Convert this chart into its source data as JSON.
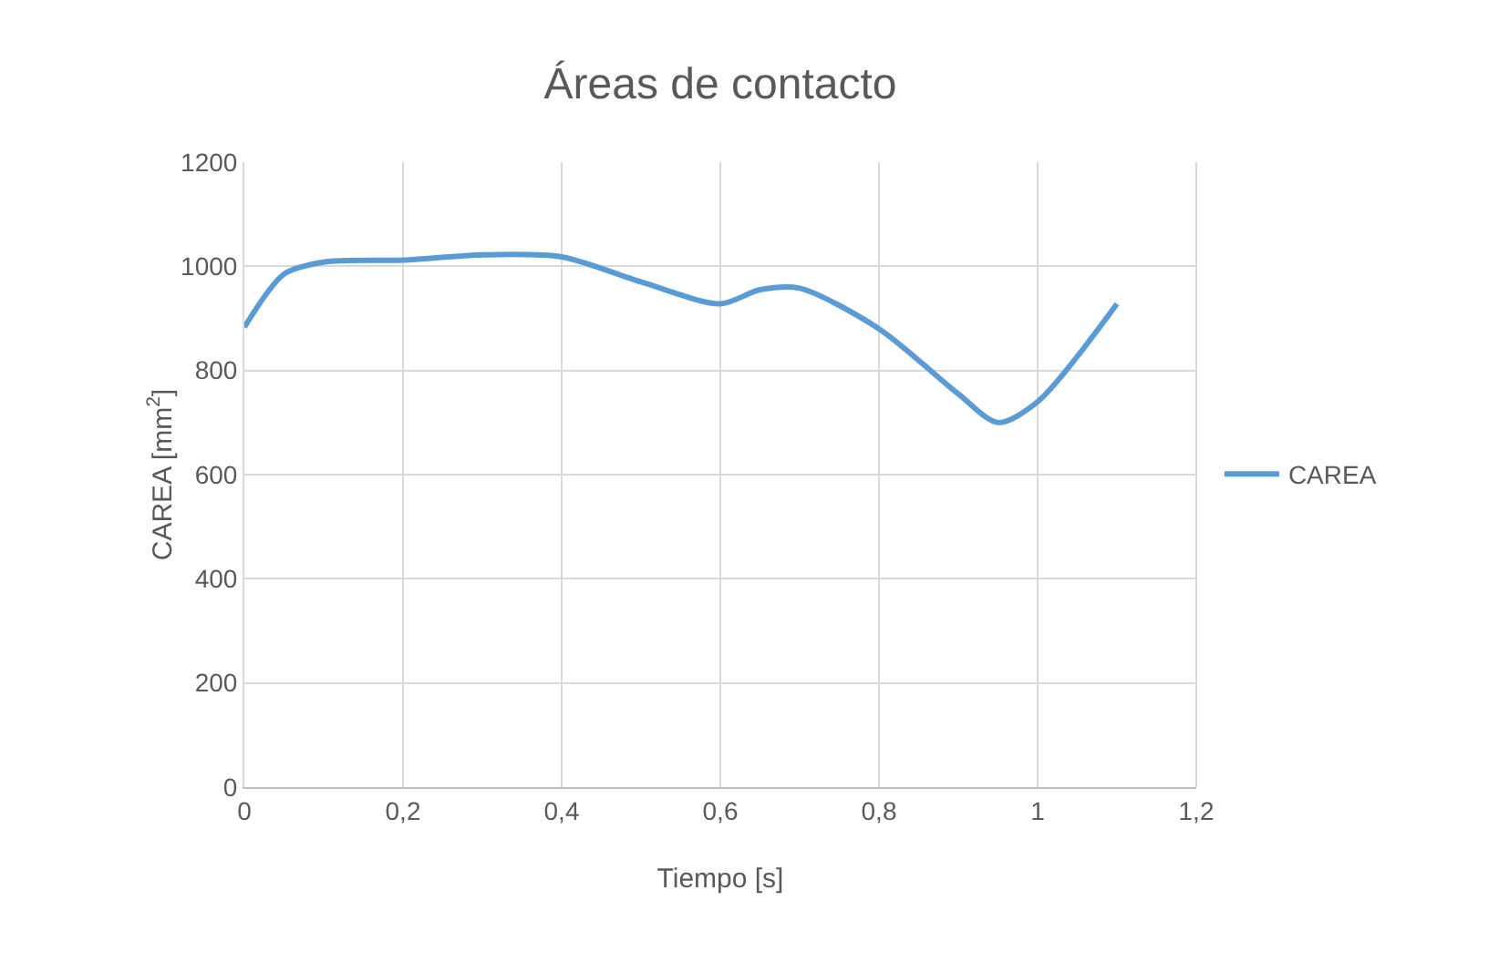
{
  "chart_data": {
    "type": "line",
    "title": "Áreas de contacto",
    "xlabel": "Tiempo [s]",
    "ylabel": "CAREA [mm$^{2}$]",
    "x": [
      0,
      0.05,
      0.1,
      0.2,
      0.3,
      0.4,
      0.5,
      0.6,
      0.65,
      0.7,
      0.8,
      0.9,
      0.95,
      1,
      1.1
    ],
    "series": [
      {
        "name": "CAREA",
        "color": "#5b9bd5",
        "values": [
          883,
          985,
          1008,
          1012,
          1022,
          1018,
          970,
          928,
          955,
          958,
          880,
          755,
          700,
          740,
          928
        ]
      }
    ],
    "xlim": [
      0,
      1.2
    ],
    "xticks": [
      0,
      {
        "value": 0.2,
        "label": "0,2"
      },
      {
        "value": 0.4,
        "label": "0,4"
      },
      {
        "value": 0.6,
        "label": "0,6"
      },
      {
        "value": 0.8,
        "label": "0,8"
      },
      1,
      {
        "value": 1.2,
        "label": "1,2"
      }
    ],
    "ylim": [
      0,
      1200
    ],
    "yticks": [
      0,
      200,
      400,
      600,
      800,
      1000,
      1200
    ],
    "grid": true,
    "legend": "right",
    "marker": "none",
    "line_style": "solid"
  }
}
